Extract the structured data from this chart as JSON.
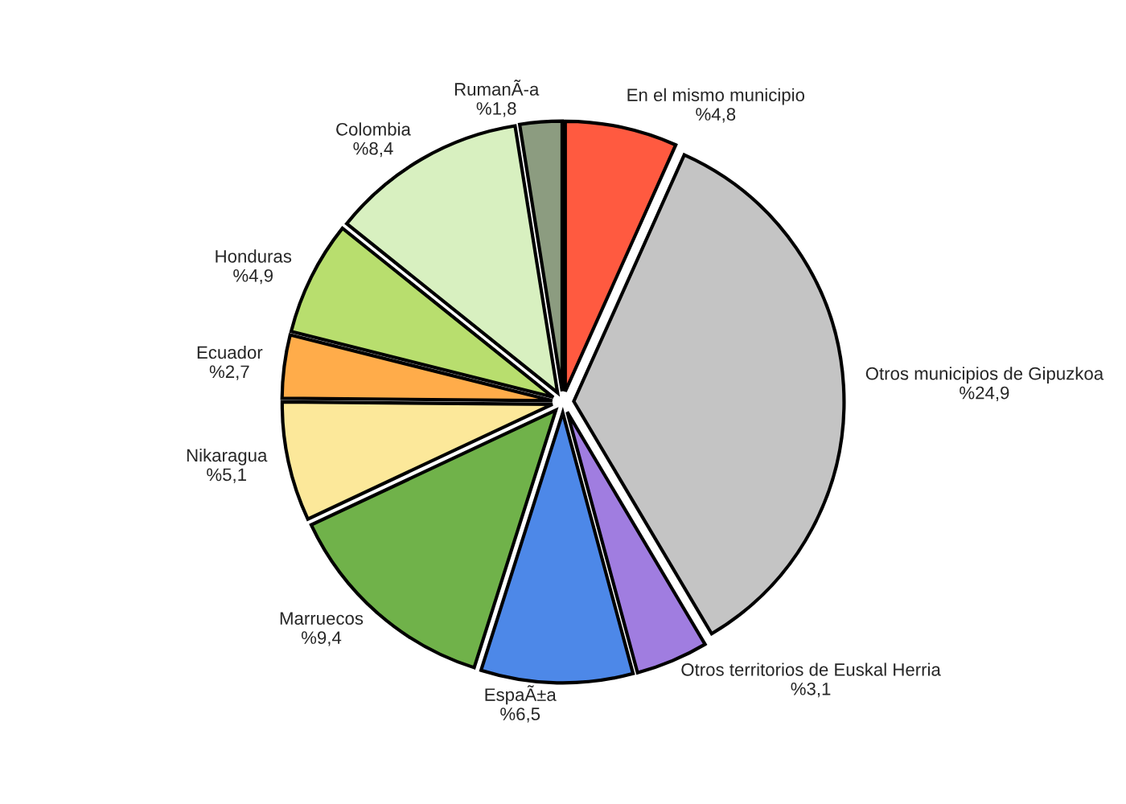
{
  "chart_data": {
    "type": "pie",
    "categories": [
      "En el mismo municipio",
      "Otros municipios de Gipuzkoa",
      "Otros territorios de Euskal Herria",
      "EspaÃ±a",
      "Marruecos",
      "Nikaragua",
      "Ecuador",
      "Honduras",
      "Colombia",
      "RumanÃ-a"
    ],
    "values": [
      4.8,
      24.9,
      3.1,
      6.5,
      9.4,
      5.1,
      2.7,
      4.9,
      8.4,
      1.8
    ],
    "value_labels": [
      "%4,8",
      "%24,9",
      "%3,1",
      "%6,5",
      "%9,4",
      "%5,1",
      "%2,7",
      "%4,9",
      "%8,4",
      "%1,8"
    ],
    "colors": [
      "#ff5a40",
      "#c4c4c4",
      "#a07de0",
      "#4d88e8",
      "#70b24a",
      "#fce89a",
      "#ffac4a",
      "#b8de6e",
      "#d8f0c0",
      "#8c9c80"
    ]
  }
}
